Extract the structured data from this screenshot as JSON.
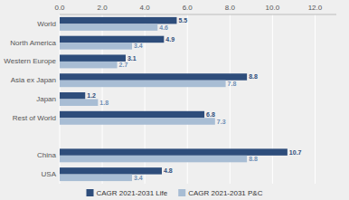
{
  "chart_data": {
    "type": "bar",
    "orientation": "horizontal",
    "categories": [
      "World",
      "North America",
      "Western Europe",
      "Asia ex Japan",
      "Japan",
      "Rest of World",
      null,
      "China",
      "USA"
    ],
    "series": [
      {
        "name": "CAGR 2021-2031 Life",
        "color": "#2e4d7b",
        "values": [
          5.5,
          4.9,
          3.1,
          8.8,
          1.2,
          6.8,
          null,
          10.7,
          4.8
        ]
      },
      {
        "name": "CAGR 2021-2031 P&C",
        "color": "#a8bdd4",
        "values": [
          4.6,
          3.4,
          2.7,
          7.8,
          1.8,
          7.3,
          null,
          8.8,
          3.4
        ]
      }
    ],
    "xlim": [
      0,
      13.0
    ],
    "xticks": [
      {
        "value": 0,
        "label": "0.0"
      },
      {
        "value": 2,
        "label": "2.0"
      },
      {
        "value": 4,
        "label": "4.0"
      },
      {
        "value": 6,
        "label": "6.0"
      },
      {
        "value": 8,
        "label": "8.0"
      },
      {
        "value": 10,
        "label": "10.0"
      },
      {
        "value": 12,
        "label": "12.0"
      }
    ],
    "grid": true,
    "data_labels": true,
    "legend": "bottom"
  }
}
